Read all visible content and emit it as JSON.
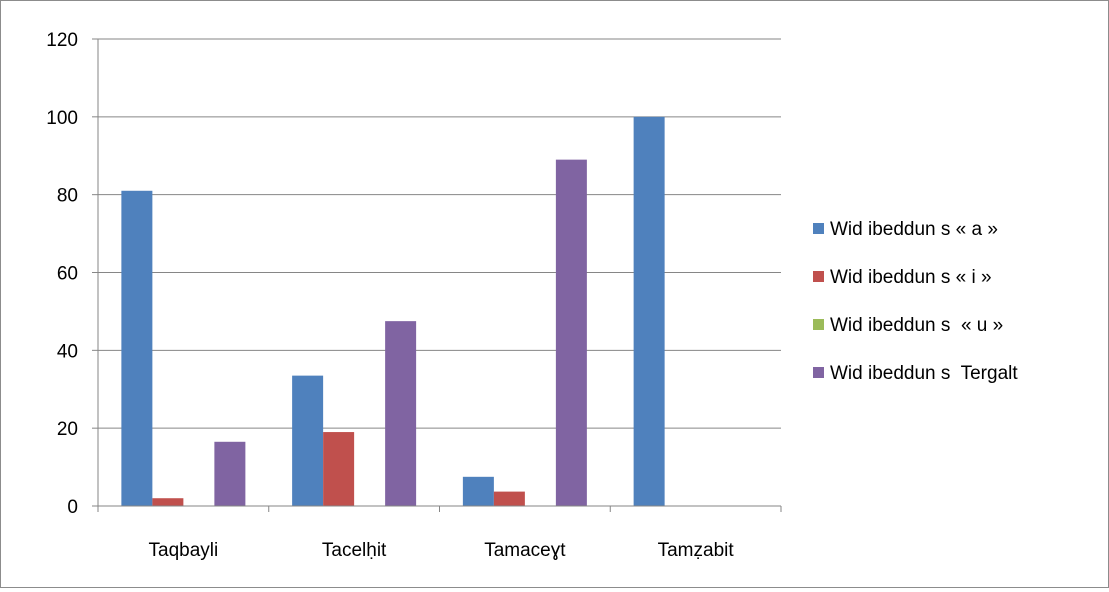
{
  "chart_data": {
    "type": "bar",
    "categories": [
      "Taqbayli",
      "Tacelḥit",
      "Tamaceɣt",
      "Tamẓabit"
    ],
    "series": [
      {
        "name": "Wid ibeddun s « a »",
        "color": "#4f81bd",
        "values": [
          81,
          33.5,
          7.5,
          100
        ]
      },
      {
        "name": "Wid ibeddun s « i »",
        "color": "#c0504d",
        "values": [
          2,
          19,
          3.7,
          0
        ]
      },
      {
        "name": "Wid ibeddun s  « u »",
        "color": "#9bbb59",
        "values": [
          0,
          0,
          0,
          0
        ]
      },
      {
        "name": "Wid ibeddun s  Tergalt",
        "color": "#8064a2",
        "values": [
          16.5,
          47.5,
          89,
          0
        ]
      }
    ],
    "ylim": [
      0,
      120
    ],
    "yticks": [
      "0",
      "20",
      "40",
      "60",
      "80",
      "100",
      "120"
    ],
    "grid": true,
    "legend_position": "right"
  }
}
